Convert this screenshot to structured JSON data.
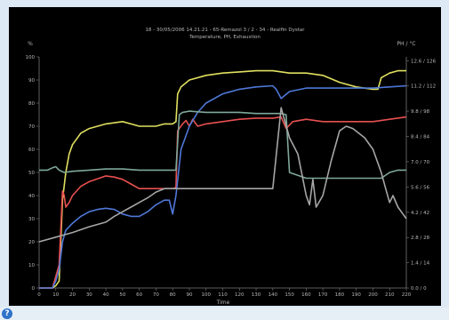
{
  "chart_data": {
    "type": "line",
    "title": "18 - 30/05/2006 14.21.21 - 65-Remazol 3 / 2 - 34 - Realfin Dystar",
    "subtitle": "Temperature, PH, Exhaustion",
    "xlabel": "Time",
    "ylabel_left": "%",
    "ylabel_right": "PH / °C",
    "xlim": [
      0,
      220
    ],
    "ylim": [
      0,
      100
    ],
    "x_ticks": [
      0,
      10,
      20,
      30,
      40,
      50,
      60,
      70,
      80,
      90,
      100,
      110,
      120,
      130,
      140,
      150,
      160,
      170,
      180,
      190,
      200,
      210,
      220
    ],
    "y_ticks_left": [
      0,
      10,
      20,
      30,
      40,
      50,
      60,
      70,
      80,
      90,
      100
    ],
    "y_ticks_right": [
      "0.0 / 0",
      "1.4 / 14",
      "2.8 / 28",
      "4.2 / 42",
      "5.6 / 56",
      "7.0 / 70",
      "8.4 / 84",
      "9.8 / 98",
      "11.2 / 112",
      "12.6 / 126"
    ],
    "grid": false,
    "series": [
      {
        "color": "#e0e060",
        "points": [
          [
            0,
            0
          ],
          [
            8,
            0
          ],
          [
            10,
            1
          ],
          [
            12,
            3
          ],
          [
            13,
            20
          ],
          [
            14,
            38
          ],
          [
            16,
            50
          ],
          [
            18,
            58
          ],
          [
            20,
            62
          ],
          [
            25,
            67
          ],
          [
            30,
            69
          ],
          [
            40,
            71
          ],
          [
            50,
            72
          ],
          [
            55,
            71
          ],
          [
            60,
            70
          ],
          [
            65,
            70
          ],
          [
            70,
            70
          ],
          [
            75,
            71
          ],
          [
            80,
            71
          ],
          [
            82,
            72
          ],
          [
            83,
            84
          ],
          [
            85,
            87
          ],
          [
            90,
            90
          ],
          [
            100,
            92
          ],
          [
            110,
            93
          ],
          [
            120,
            93.5
          ],
          [
            130,
            94
          ],
          [
            140,
            94
          ],
          [
            150,
            93
          ],
          [
            160,
            93
          ],
          [
            170,
            92
          ],
          [
            180,
            89
          ],
          [
            190,
            87
          ],
          [
            200,
            86
          ],
          [
            203,
            86
          ],
          [
            205,
            91
          ],
          [
            210,
            93
          ],
          [
            215,
            94
          ],
          [
            220,
            94
          ]
        ]
      },
      {
        "color": "#e85050",
        "points": [
          [
            0,
            0
          ],
          [
            8,
            0
          ],
          [
            10,
            5
          ],
          [
            12,
            10
          ],
          [
            14,
            42
          ],
          [
            15,
            40
          ],
          [
            16,
            35
          ],
          [
            18,
            37
          ],
          [
            20,
            40
          ],
          [
            25,
            44
          ],
          [
            30,
            46
          ],
          [
            40,
            48.5
          ],
          [
            45,
            48
          ],
          [
            50,
            47
          ],
          [
            55,
            45
          ],
          [
            60,
            43
          ],
          [
            65,
            43
          ],
          [
            70,
            43
          ],
          [
            75,
            43
          ],
          [
            80,
            43
          ],
          [
            82,
            43.5
          ],
          [
            83,
            68
          ],
          [
            86,
            71
          ],
          [
            88,
            72.5
          ],
          [
            90,
            70
          ],
          [
            92,
            73
          ],
          [
            95,
            70
          ],
          [
            100,
            71
          ],
          [
            110,
            72
          ],
          [
            120,
            73
          ],
          [
            130,
            73.5
          ],
          [
            140,
            73.5
          ],
          [
            145,
            74
          ],
          [
            148,
            69
          ],
          [
            152,
            72
          ],
          [
            160,
            73
          ],
          [
            170,
            72
          ],
          [
            180,
            72
          ],
          [
            190,
            72
          ],
          [
            200,
            72
          ],
          [
            210,
            73
          ],
          [
            220,
            74
          ]
        ]
      },
      {
        "color": "#4f78d8",
        "points": [
          [
            0,
            0
          ],
          [
            8,
            0
          ],
          [
            10,
            3
          ],
          [
            12,
            8
          ],
          [
            14,
            20
          ],
          [
            16,
            25
          ],
          [
            20,
            28
          ],
          [
            25,
            31
          ],
          [
            30,
            33
          ],
          [
            35,
            34
          ],
          [
            40,
            34.5
          ],
          [
            45,
            34
          ],
          [
            50,
            32
          ],
          [
            55,
            31
          ],
          [
            60,
            31
          ],
          [
            65,
            33
          ],
          [
            70,
            36
          ],
          [
            75,
            38
          ],
          [
            78,
            38
          ],
          [
            80,
            32
          ],
          [
            82,
            40
          ],
          [
            85,
            60
          ],
          [
            90,
            70
          ],
          [
            95,
            76
          ],
          [
            100,
            80
          ],
          [
            110,
            84
          ],
          [
            120,
            86
          ],
          [
            130,
            87
          ],
          [
            140,
            87.5
          ],
          [
            142,
            86
          ],
          [
            145,
            82
          ],
          [
            150,
            85
          ],
          [
            160,
            86.5
          ],
          [
            170,
            86.5
          ],
          [
            180,
            86.5
          ],
          [
            190,
            86.5
          ],
          [
            200,
            86.5
          ],
          [
            210,
            87
          ],
          [
            220,
            87.5
          ]
        ]
      },
      {
        "color": "#7ea89a",
        "points": [
          [
            0,
            51
          ],
          [
            5,
            51
          ],
          [
            8,
            52
          ],
          [
            10,
            52.5
          ],
          [
            12,
            51
          ],
          [
            15,
            50
          ],
          [
            20,
            50.5
          ],
          [
            30,
            51
          ],
          [
            40,
            51.5
          ],
          [
            50,
            51.5
          ],
          [
            60,
            51
          ],
          [
            70,
            51
          ],
          [
            80,
            51
          ],
          [
            82,
            51
          ],
          [
            84,
            75
          ],
          [
            86,
            76
          ],
          [
            90,
            76.5
          ],
          [
            100,
            76
          ],
          [
            110,
            76
          ],
          [
            120,
            76
          ],
          [
            130,
            75.5
          ],
          [
            140,
            75.5
          ],
          [
            145,
            75.5
          ],
          [
            148,
            75
          ],
          [
            150,
            50
          ],
          [
            160,
            47.5
          ],
          [
            170,
            47.5
          ],
          [
            180,
            47.5
          ],
          [
            190,
            47.5
          ],
          [
            200,
            47.5
          ],
          [
            205,
            47.5
          ],
          [
            210,
            50
          ],
          [
            215,
            51
          ],
          [
            220,
            51
          ]
        ]
      },
      {
        "color": "#a6a6a6",
        "points": [
          [
            0,
            20
          ],
          [
            10,
            22
          ],
          [
            20,
            24
          ],
          [
            30,
            26.5
          ],
          [
            40,
            28.5
          ],
          [
            45,
            31
          ],
          [
            50,
            33
          ],
          [
            55,
            35
          ],
          [
            60,
            37
          ],
          [
            65,
            39
          ],
          [
            70,
            41.5
          ],
          [
            75,
            43
          ],
          [
            80,
            43
          ],
          [
            85,
            43
          ],
          [
            90,
            43
          ],
          [
            100,
            43
          ],
          [
            110,
            43
          ],
          [
            120,
            43
          ],
          [
            130,
            43
          ],
          [
            140,
            43
          ],
          [
            145,
            78
          ],
          [
            150,
            65
          ],
          [
            155,
            58
          ],
          [
            160,
            40
          ],
          [
            162,
            36
          ],
          [
            164,
            47
          ],
          [
            166,
            35
          ],
          [
            170,
            40
          ],
          [
            175,
            55
          ],
          [
            180,
            68
          ],
          [
            184,
            70
          ],
          [
            188,
            69
          ],
          [
            195,
            65
          ],
          [
            200,
            60
          ],
          [
            205,
            50
          ],
          [
            208,
            42
          ],
          [
            210,
            37
          ],
          [
            212,
            40
          ],
          [
            215,
            35
          ],
          [
            218,
            32
          ],
          [
            220,
            30
          ]
        ]
      }
    ]
  }
}
